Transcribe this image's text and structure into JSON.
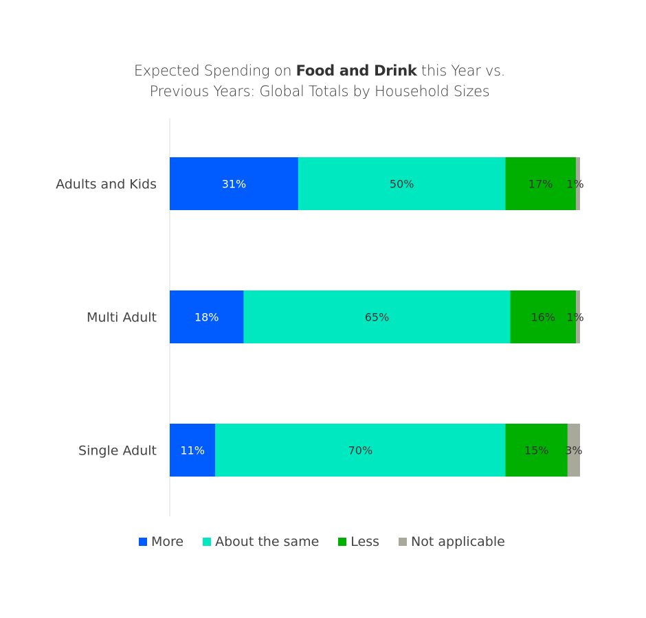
{
  "chart_data": {
    "type": "bar",
    "orientation": "horizontal",
    "stacked": true,
    "title": {
      "prefix": "Expected Spending on ",
      "bold": "Food and Drink",
      "suffix": " this Year vs.",
      "line2": "Previous Years: Global Totals by Household Sizes"
    },
    "categories": [
      "Adults and Kids",
      "Multi Adult",
      "Single Adult"
    ],
    "series": [
      {
        "name": "More",
        "color": "#005cff",
        "label_color": "#ffffff",
        "values": [
          31,
          18,
          11
        ]
      },
      {
        "name": "About the same",
        "color": "#00e8c0",
        "label_color": "#333333",
        "values": [
          50,
          65,
          70
        ]
      },
      {
        "name": "Less",
        "color": "#00b000",
        "label_color": "#333333",
        "values": [
          17,
          16,
          15
        ]
      },
      {
        "name": "Not applicable",
        "color": "#a9a99b",
        "label_color": "#333333",
        "values": [
          1,
          1,
          3
        ]
      }
    ],
    "value_suffix": "%",
    "legend_position": "bottom",
    "grid": false
  }
}
